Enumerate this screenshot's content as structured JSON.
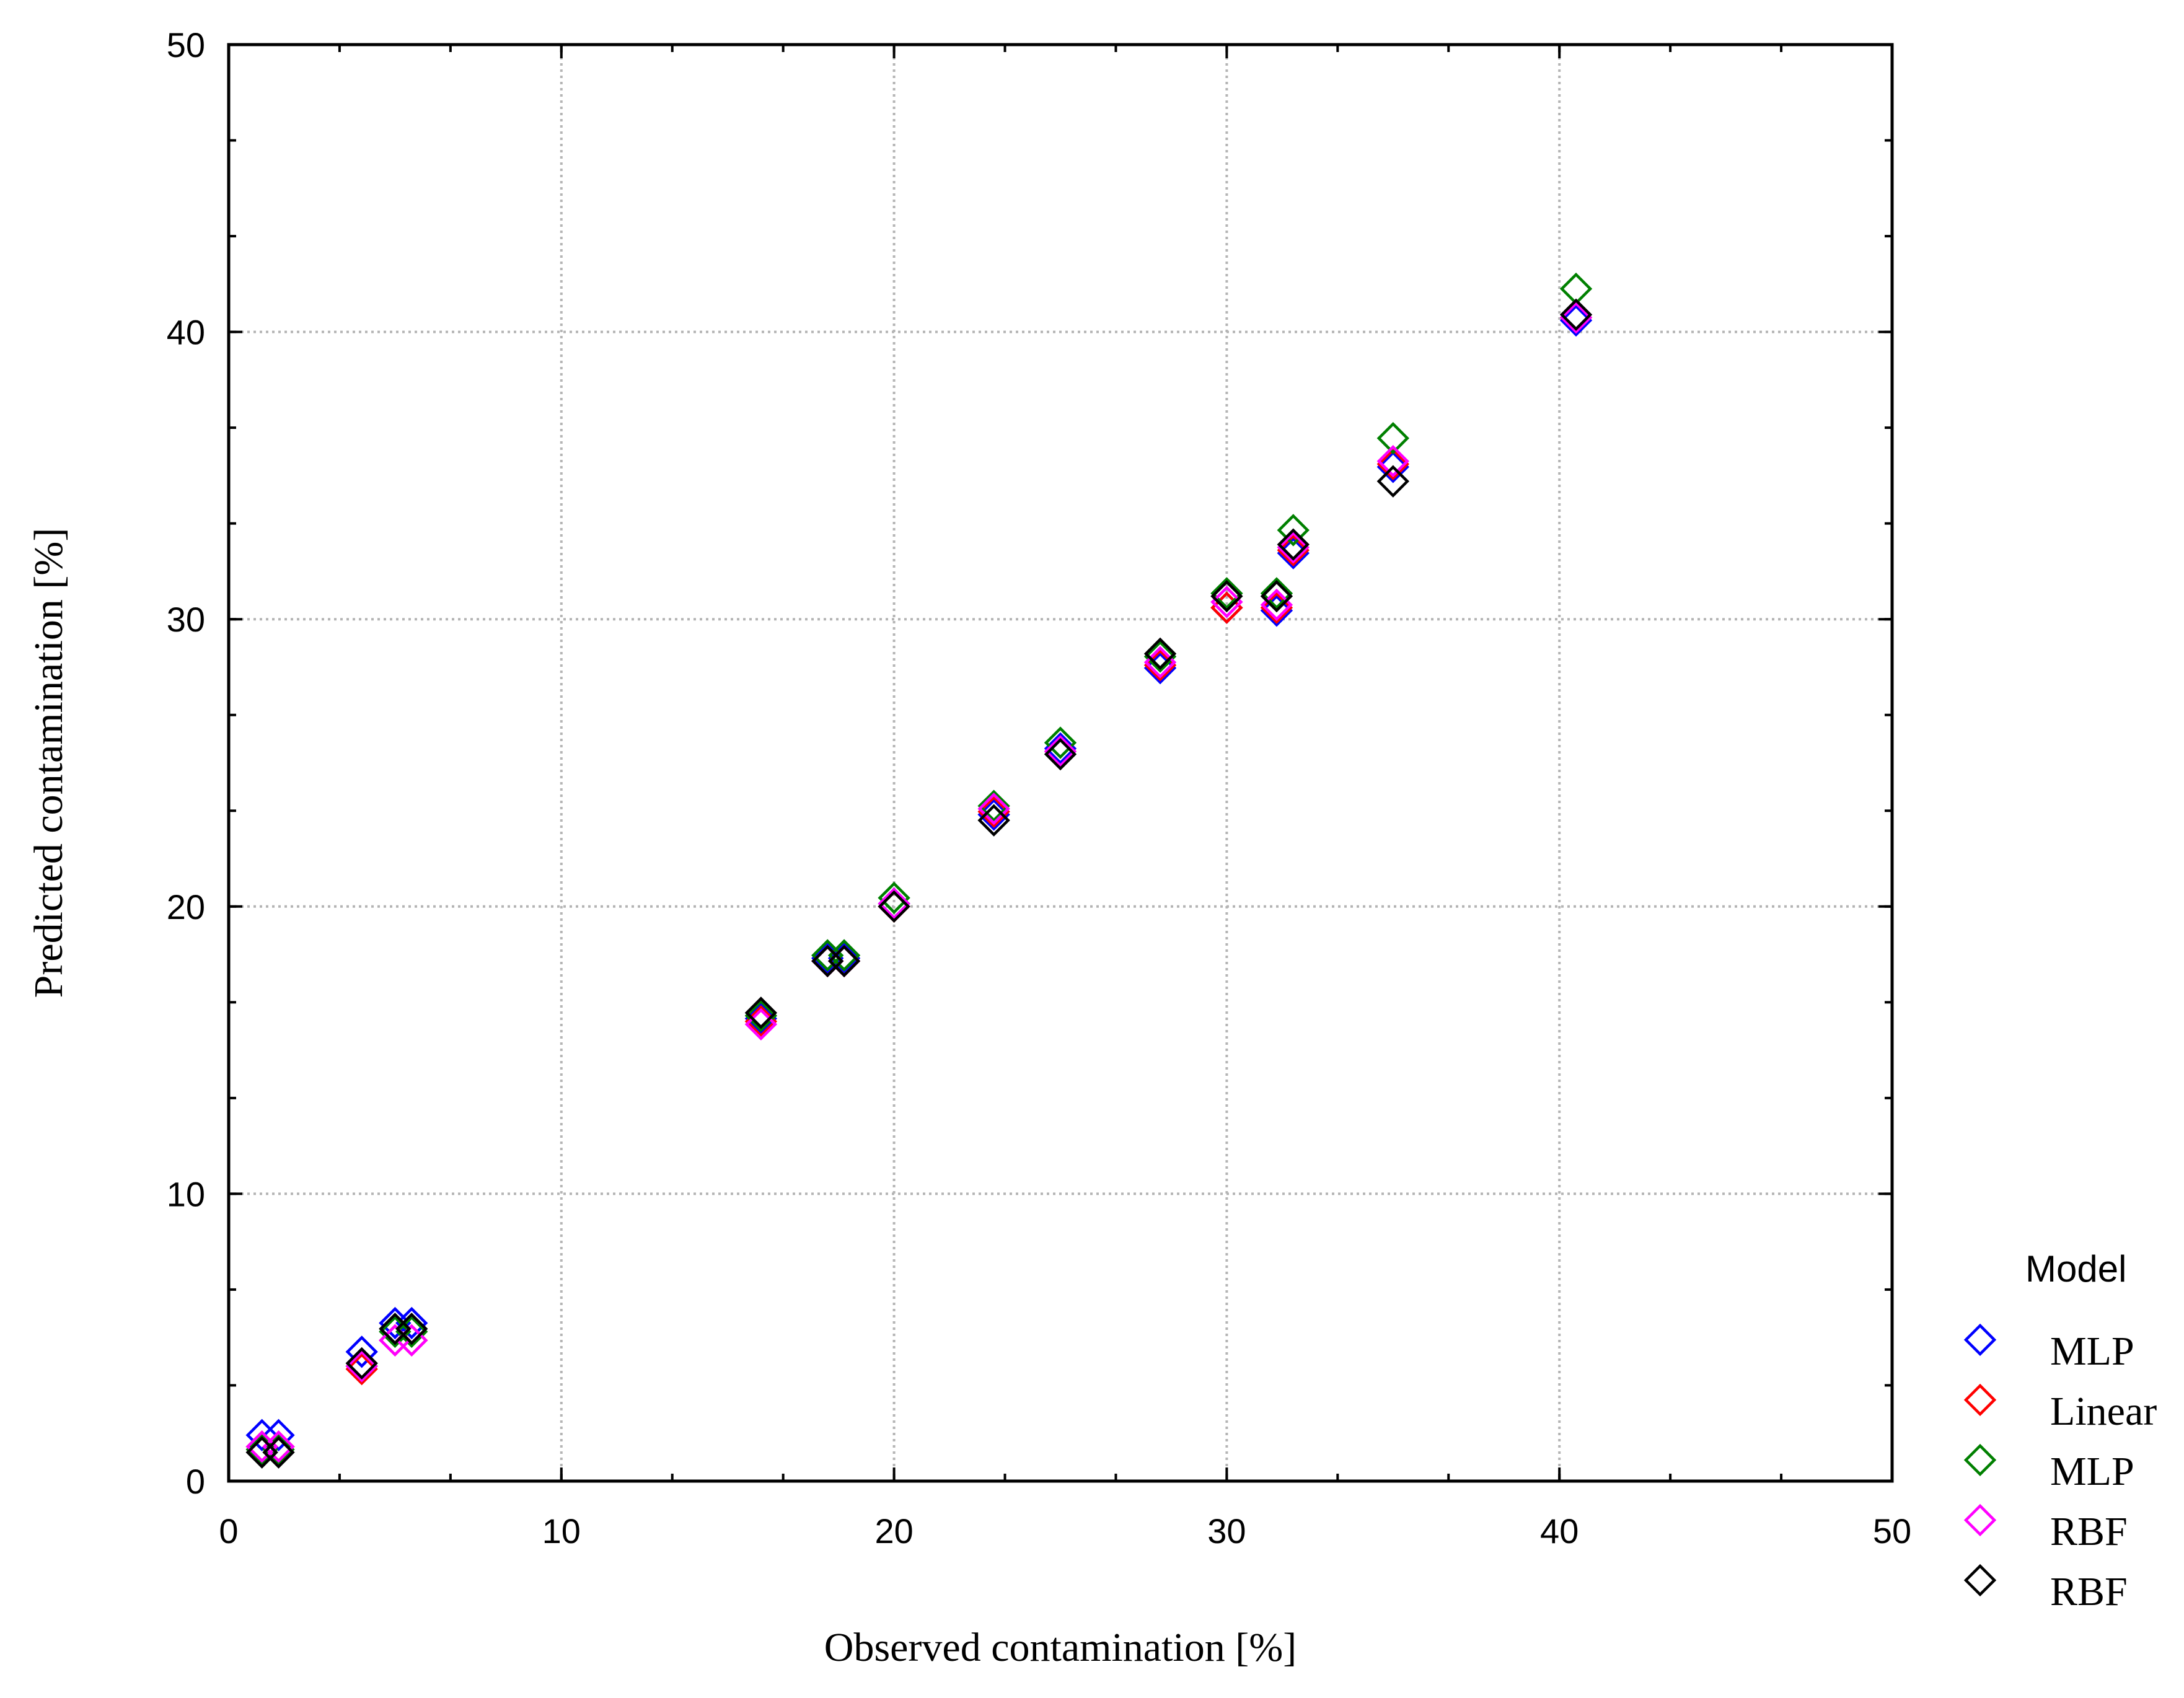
{
  "chart_data": {
    "type": "scatter",
    "title": "",
    "xlabel": "Observed contamination [%]",
    "ylabel": "Predicted contamination [%]",
    "xlim": [
      0,
      50
    ],
    "ylim": [
      0,
      50
    ],
    "xticks": [
      0,
      10,
      20,
      30,
      40,
      50
    ],
    "yticks": [
      0,
      10,
      20,
      30,
      40,
      50
    ],
    "grid": true,
    "legend": {
      "title": "Model",
      "placement": "right"
    },
    "marker": "diamond",
    "series": [
      {
        "name": "MLP",
        "color": "#0000ff",
        "points": [
          [
            1,
            1.6
          ],
          [
            1.5,
            1.6
          ],
          [
            4,
            4.5
          ],
          [
            5,
            5.5
          ],
          [
            5.5,
            5.5
          ],
          [
            16,
            16.1
          ],
          [
            18,
            18.2
          ],
          [
            18.5,
            18.2
          ],
          [
            20,
            20.1
          ],
          [
            23,
            23.2
          ],
          [
            25,
            25.5
          ],
          [
            28,
            28.3
          ],
          [
            30,
            30.4
          ],
          [
            31.5,
            30.3
          ],
          [
            32,
            32.3
          ],
          [
            35,
            35.3
          ],
          [
            40.5,
            40.4
          ]
        ]
      },
      {
        "name": "Linear",
        "color": "#ff0000",
        "points": [
          [
            1,
            1.2
          ],
          [
            1.5,
            1.2
          ],
          [
            4,
            3.9
          ],
          [
            5,
            4.9
          ],
          [
            5.5,
            4.9
          ],
          [
            16,
            16.0
          ],
          [
            18,
            18.1
          ],
          [
            18.5,
            18.1
          ],
          [
            20,
            20.0
          ],
          [
            23,
            23.3
          ],
          [
            25,
            25.4
          ],
          [
            28,
            28.4
          ],
          [
            30,
            30.4
          ],
          [
            31.5,
            30.4
          ],
          [
            32,
            32.4
          ],
          [
            35,
            35.4
          ],
          [
            40.5,
            40.5
          ]
        ]
      },
      {
        "name": "MLP",
        "color": "#008000",
        "points": [
          [
            1,
            1.1
          ],
          [
            1.5,
            1.1
          ],
          [
            4,
            4.0
          ],
          [
            5,
            5.2
          ],
          [
            5.5,
            5.2
          ],
          [
            16,
            16.2
          ],
          [
            18,
            18.3
          ],
          [
            18.5,
            18.3
          ],
          [
            20,
            20.3
          ],
          [
            23,
            23.5
          ],
          [
            25,
            25.7
          ],
          [
            28,
            28.7
          ],
          [
            30,
            30.9
          ],
          [
            31.5,
            30.9
          ],
          [
            32,
            33.1
          ],
          [
            35,
            36.3
          ],
          [
            40.5,
            41.5
          ]
        ]
      },
      {
        "name": "RBF",
        "color": "#ff00ff",
        "points": [
          [
            1,
            1.2
          ],
          [
            1.5,
            1.2
          ],
          [
            4,
            4.0
          ],
          [
            5,
            4.9
          ],
          [
            5.5,
            4.9
          ],
          [
            16,
            15.9
          ],
          [
            18,
            18.1
          ],
          [
            18.5,
            18.1
          ],
          [
            20,
            20.1
          ],
          [
            23,
            23.4
          ],
          [
            25,
            25.4
          ],
          [
            28,
            28.5
          ],
          [
            30,
            30.6
          ],
          [
            31.5,
            30.5
          ],
          [
            32,
            32.5
          ],
          [
            35,
            35.5
          ],
          [
            40.5,
            40.5
          ]
        ]
      },
      {
        "name": "RBF",
        "color": "#000000",
        "points": [
          [
            1,
            1.0
          ],
          [
            1.5,
            1.0
          ],
          [
            4,
            4.1
          ],
          [
            5,
            5.3
          ],
          [
            5.5,
            5.3
          ],
          [
            16,
            16.3
          ],
          [
            18,
            18.1
          ],
          [
            18.5,
            18.1
          ],
          [
            20,
            20.0
          ],
          [
            23,
            23.0
          ],
          [
            25,
            25.3
          ],
          [
            28,
            28.8
          ],
          [
            30,
            30.8
          ],
          [
            31.5,
            30.8
          ],
          [
            32,
            32.6
          ],
          [
            35,
            34.8
          ],
          [
            40.5,
            40.6
          ]
        ]
      }
    ]
  }
}
